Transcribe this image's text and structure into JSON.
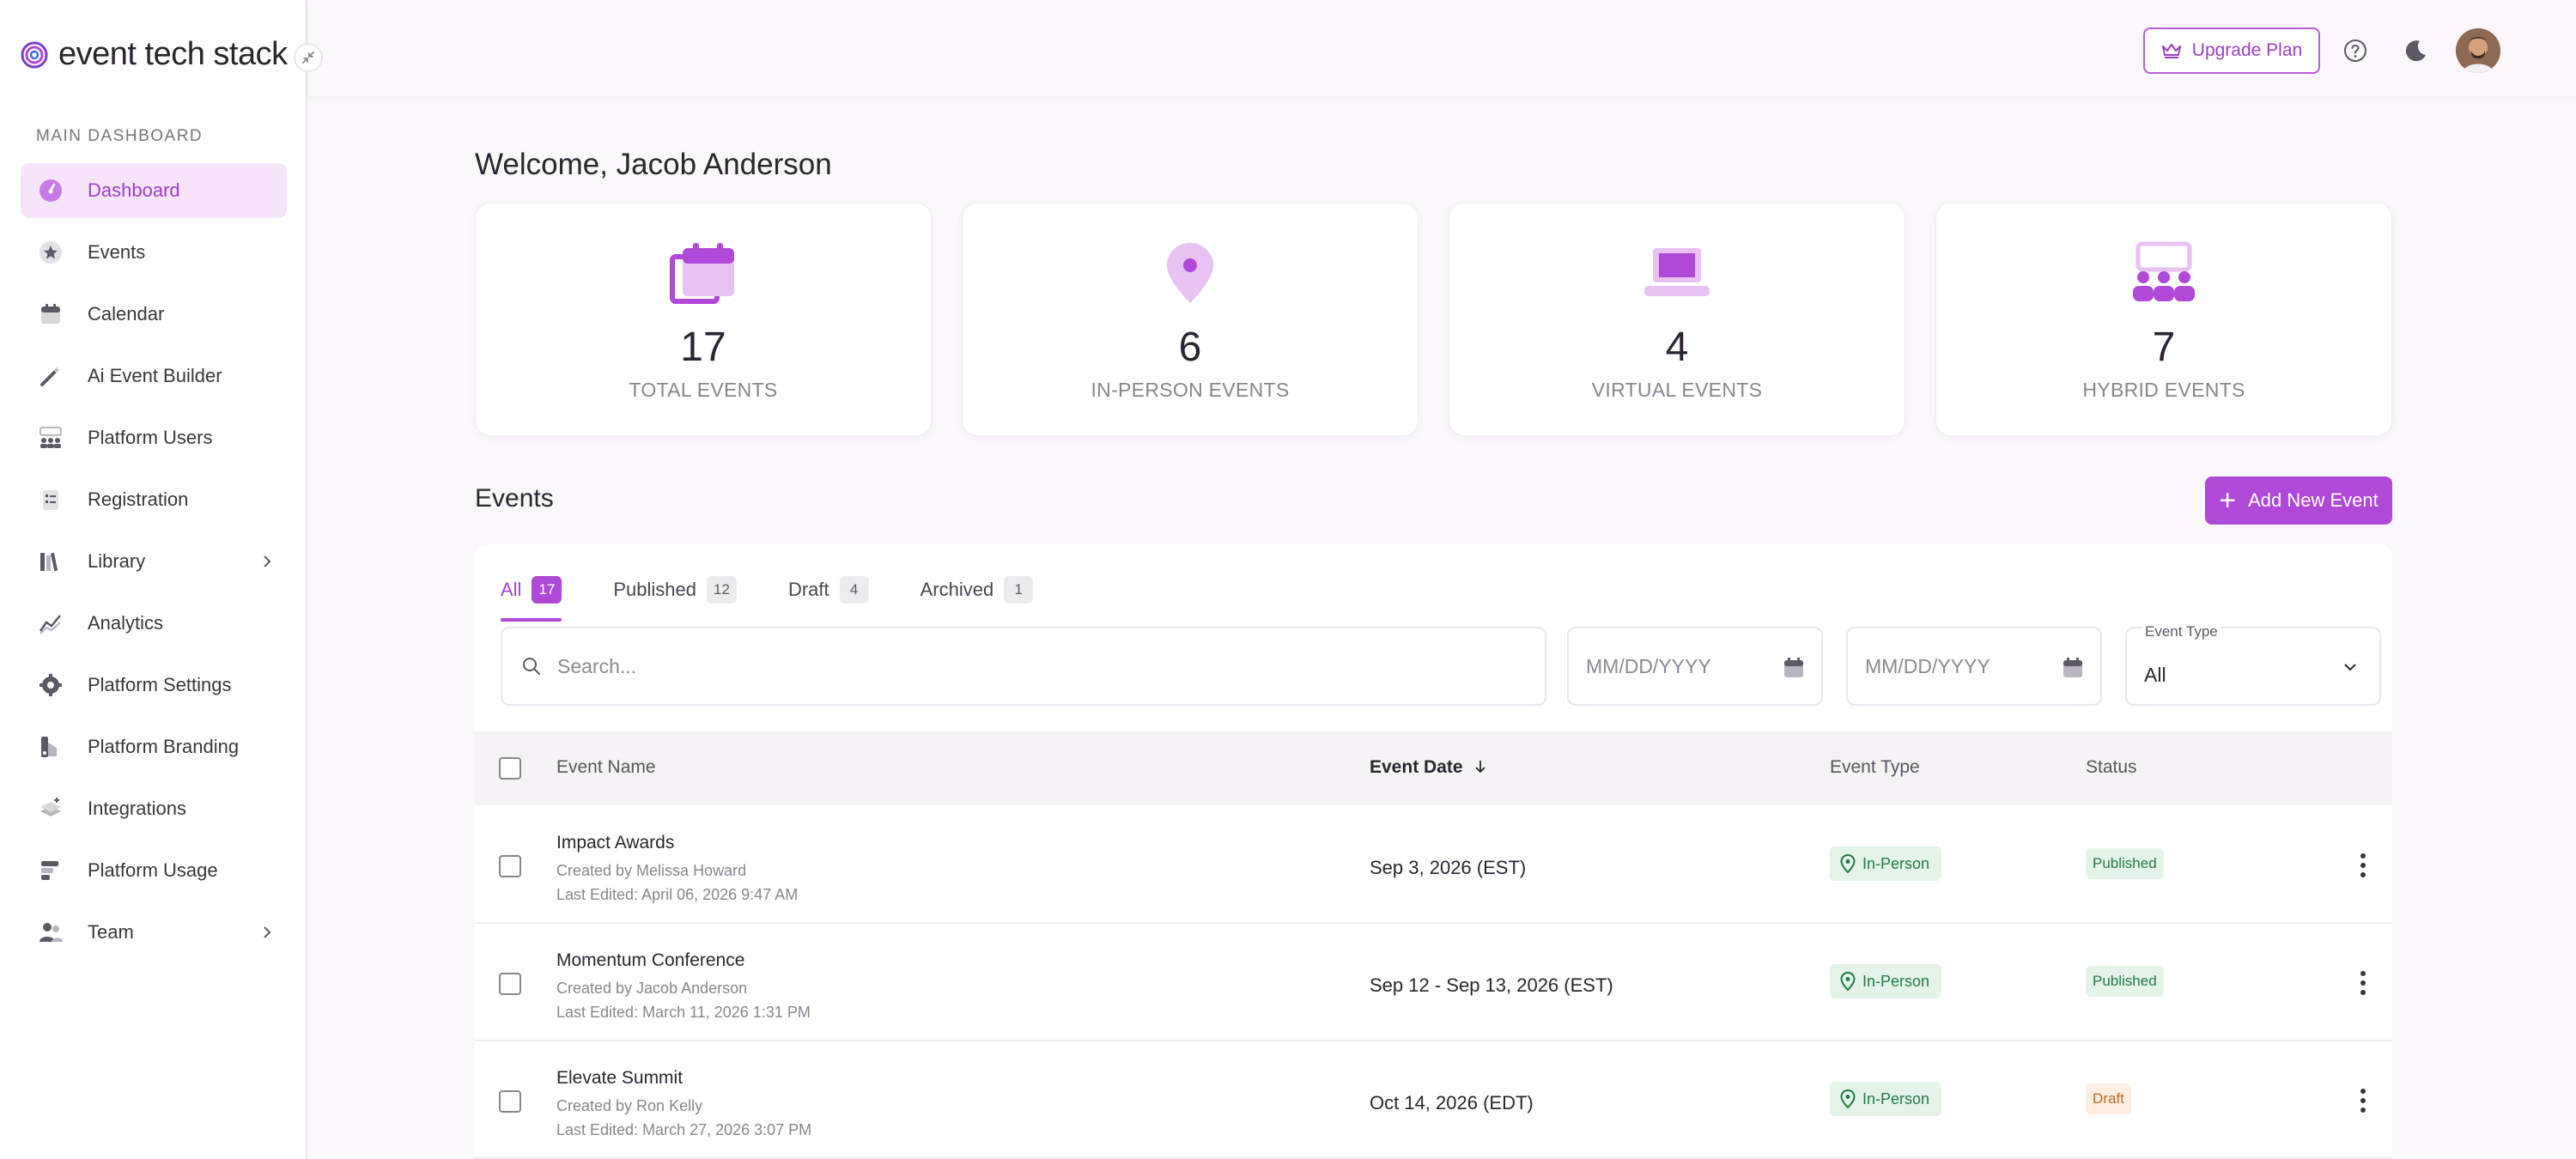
{
  "brand": {
    "name": "event tech stack"
  },
  "sidebar": {
    "section_label": "MAIN DASHBOARD",
    "items": [
      {
        "label": "Dashboard",
        "icon": "dashboard-icon",
        "active": true
      },
      {
        "label": "Events",
        "icon": "star-badge-icon"
      },
      {
        "label": "Calendar",
        "icon": "calendar-icon"
      },
      {
        "label": "Ai Event Builder",
        "icon": "magic-wand-icon"
      },
      {
        "label": "Platform Users",
        "icon": "users-icon"
      },
      {
        "label": "Registration",
        "icon": "clipboard-icon"
      },
      {
        "label": "Library",
        "icon": "books-icon",
        "has_children": true
      },
      {
        "label": "Analytics",
        "icon": "analytics-icon"
      },
      {
        "label": "Platform Settings",
        "icon": "gear-icon"
      },
      {
        "label": "Platform Branding",
        "icon": "branding-icon"
      },
      {
        "label": "Integrations",
        "icon": "layers-icon"
      },
      {
        "label": "Platform Usage",
        "icon": "usage-icon"
      },
      {
        "label": "Team",
        "icon": "team-icon",
        "has_children": true
      }
    ]
  },
  "topbar": {
    "upgrade_label": "Upgrade Plan",
    "help_icon": "help-icon",
    "theme_icon": "moon-icon",
    "avatar": "user-avatar"
  },
  "welcome": "Welcome, Jacob Anderson",
  "stats": [
    {
      "value": "17",
      "label": "TOTAL EVENTS",
      "icon": "calendar-stack-icon"
    },
    {
      "value": "6",
      "label": "IN-PERSON EVENTS",
      "icon": "map-pin-icon"
    },
    {
      "value": "4",
      "label": "VIRTUAL EVENTS",
      "icon": "laptop-icon"
    },
    {
      "value": "7",
      "label": "HYBRID EVENTS",
      "icon": "audience-icon"
    }
  ],
  "events": {
    "title": "Events",
    "add_label": "Add New Event",
    "tabs": [
      {
        "label": "All",
        "count": "17",
        "active": true
      },
      {
        "label": "Published",
        "count": "12"
      },
      {
        "label": "Draft",
        "count": "4"
      },
      {
        "label": "Archived",
        "count": "1"
      }
    ],
    "search_placeholder": "Search...",
    "date_from_placeholder": "MM/DD/YYYY",
    "date_to_placeholder": "MM/DD/YYYY",
    "type_filter_label": "Event Type",
    "type_filter_value": "All",
    "columns": {
      "name": "Event Name",
      "date": "Event Date",
      "type": "Event Type",
      "status": "Status"
    },
    "rows": [
      {
        "name": "Impact Awards",
        "created_by": "Created by Melissa Howard",
        "last_edited": "Last Edited: April 06, 2026 9:47 AM",
        "date": "Sep 3, 2026 (EST)",
        "type": "In-Person",
        "status": "Published"
      },
      {
        "name": "Momentum Conference",
        "created_by": "Created by Jacob Anderson",
        "last_edited": "Last Edited: March 11, 2026 1:31 PM",
        "date": "Sep 12 - Sep 13, 2026 (EST)",
        "type": "In-Person",
        "status": "Published"
      },
      {
        "name": "Elevate Summit",
        "created_by": "Created by Ron Kelly",
        "last_edited": "Last Edited: March 27, 2026 3:07 PM",
        "date": "Oct 14, 2026 (EDT)",
        "type": "In-Person",
        "status": "Draft"
      }
    ]
  },
  "colors": {
    "accent": "#b048d8",
    "accent_light": "#f6e4fa",
    "success_bg": "#e4f4e9",
    "success_fg": "#247a45",
    "draft_bg": "#fdeee1",
    "draft_fg": "#c06a23"
  }
}
